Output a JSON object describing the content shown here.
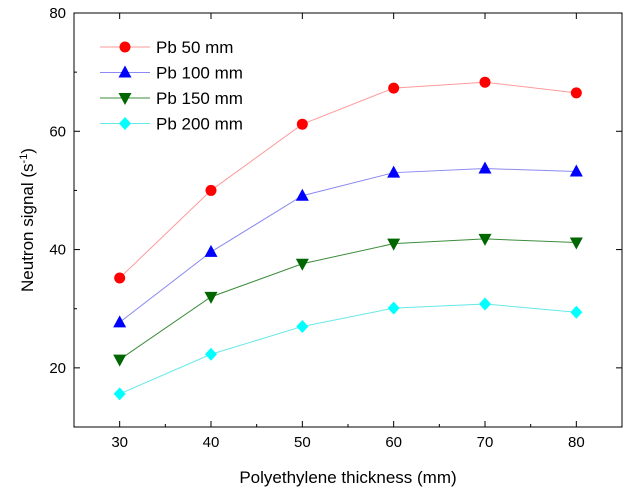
{
  "chart_data": {
    "type": "line",
    "xlabel": "Polyethylene thickness (mm)",
    "ylabel": {
      "main": "Neutron signal (s",
      "sup": "-1",
      "close": ")"
    },
    "xlim": [
      25,
      85
    ],
    "ylim": [
      10,
      80
    ],
    "x_ticks": [
      30,
      40,
      50,
      60,
      70,
      80
    ],
    "y_ticks": [
      20,
      40,
      60,
      80
    ],
    "y_minor_ticks": [
      30,
      50,
      70
    ],
    "grid": false,
    "legend_position": "top-left",
    "x": [
      30,
      40,
      50,
      60,
      70,
      80
    ],
    "series": [
      {
        "name": "Pb 50 mm",
        "marker": "circle",
        "line_color": "#ff9a9a",
        "marker_color": "#ff0000",
        "values": [
          35.2,
          50.0,
          61.2,
          67.3,
          68.3,
          66.5
        ]
      },
      {
        "name": "Pb 100 mm",
        "marker": "triangle-up",
        "line_color": "#8a8af0",
        "marker_color": "#0000ff",
        "values": [
          27.7,
          39.6,
          49.1,
          53.0,
          53.7,
          53.2
        ]
      },
      {
        "name": "Pb 150 mm",
        "marker": "triangle-down",
        "line_color": "#3c8c3c",
        "marker_color": "#006600",
        "values": [
          21.4,
          32.0,
          37.6,
          41.0,
          41.8,
          41.2
        ]
      },
      {
        "name": "Pb 200 mm",
        "marker": "diamond",
        "line_color": "#66e8e8",
        "marker_color": "#00ffff",
        "values": [
          15.6,
          22.3,
          27.0,
          30.1,
          30.8,
          29.4
        ]
      }
    ]
  }
}
